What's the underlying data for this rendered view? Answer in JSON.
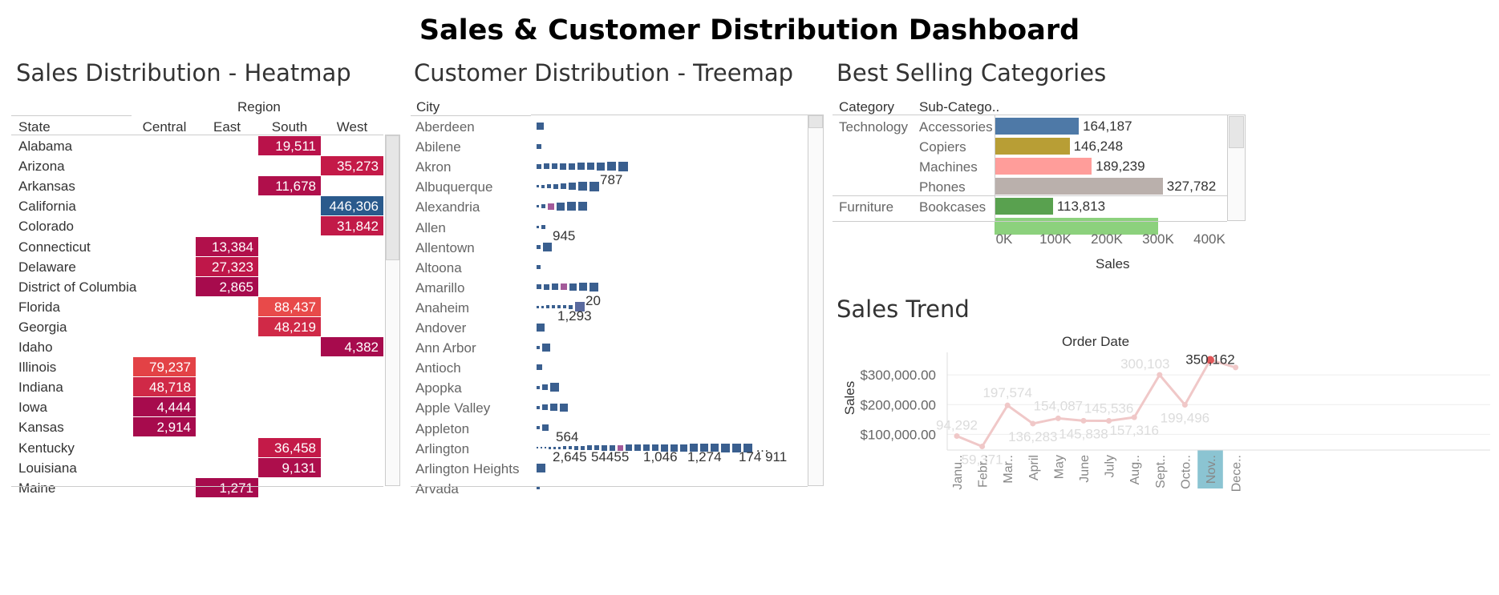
{
  "title": "Sales & Customer Distribution Dashboard",
  "heatmap": {
    "panel_title": "Sales Distribution - Heatmap",
    "column_group": "Region",
    "row_header": "State",
    "columns": [
      "Central",
      "East",
      "South",
      "West"
    ],
    "rows": [
      {
        "state": "Alabama",
        "region": "South",
        "value": 19511,
        "label": "19,511",
        "color": "#b9124a"
      },
      {
        "state": "Arizona",
        "region": "West",
        "value": 35273,
        "label": "35,273",
        "color": "#c41a48"
      },
      {
        "state": "Arkansas",
        "region": "South",
        "value": 11678,
        "label": "11,678",
        "color": "#b00f4b"
      },
      {
        "state": "California",
        "region": "West",
        "value": 446306,
        "label": "446,306",
        "color": "#2a5a8c"
      },
      {
        "state": "Colorado",
        "region": "West",
        "value": 31842,
        "label": "31,842",
        "color": "#c21a48"
      },
      {
        "state": "Connecticut",
        "region": "East",
        "value": 13384,
        "label": "13,384",
        "color": "#b1104b"
      },
      {
        "state": "Delaware",
        "region": "East",
        "value": 27323,
        "label": "27,323",
        "color": "#bf1749"
      },
      {
        "state": "District of Columbia",
        "region": "East",
        "value": 2865,
        "label": "2,865",
        "color": "#a70b4d"
      },
      {
        "state": "Florida",
        "region": "South",
        "value": 88437,
        "label": "88,437",
        "color": "#e84a4a"
      },
      {
        "state": "Georgia",
        "region": "South",
        "value": 48219,
        "label": "48,219",
        "color": "#d02947"
      },
      {
        "state": "Idaho",
        "region": "West",
        "value": 4382,
        "label": "4,382",
        "color": "#a70b4d"
      },
      {
        "state": "Illinois",
        "region": "Central",
        "value": 79237,
        "label": "79,237",
        "color": "#e34246"
      },
      {
        "state": "Indiana",
        "region": "Central",
        "value": 48718,
        "label": "48,718",
        "color": "#d02947"
      },
      {
        "state": "Iowa",
        "region": "Central",
        "value": 4444,
        "label": "4,444",
        "color": "#a70b4d"
      },
      {
        "state": "Kansas",
        "region": "Central",
        "value": 2914,
        "label": "2,914",
        "color": "#a70b4d"
      },
      {
        "state": "Kentucky",
        "region": "South",
        "value": 36458,
        "label": "36,458",
        "color": "#c41a48"
      },
      {
        "state": "Louisiana",
        "region": "South",
        "value": 9131,
        "label": "9,131",
        "color": "#ad0e4c"
      },
      {
        "state": "Maine",
        "region": "East",
        "value": 1271,
        "label": "1,271",
        "color": "#a70b4d"
      }
    ]
  },
  "treemap": {
    "panel_title": "Customer Distribution - Treemap",
    "row_header": "City",
    "colors": {
      "primary": "#3a5f8f",
      "alt": "#5a6a9f",
      "pink": "#a35a9a"
    },
    "cities": [
      {
        "name": "Aberdeen",
        "squares": [
          9
        ]
      },
      {
        "name": "Abilene",
        "squares": [
          6
        ]
      },
      {
        "name": "Akron",
        "squares": [
          6,
          7,
          7,
          8,
          8,
          9,
          9,
          10,
          11,
          12
        ],
        "labels": []
      },
      {
        "name": "Albuquerque",
        "squares": [
          3,
          4,
          5,
          6,
          7,
          9,
          11,
          12
        ],
        "labels": [
          {
            "text": "787"
          }
        ]
      },
      {
        "name": "Alexandria",
        "squares": [
          3,
          5,
          8,
          10,
          11,
          11
        ],
        "pinkIndex": 2,
        "labels": []
      },
      {
        "name": "Allen",
        "squares": [
          3,
          5
        ],
        "labels": [
          {
            "text": "945"
          }
        ]
      },
      {
        "name": "Allentown",
        "squares": [
          5,
          11
        ]
      },
      {
        "name": "Altoona",
        "squares": [
          5
        ]
      },
      {
        "name": "Amarillo",
        "squares": [
          6,
          7,
          8,
          8,
          9,
          10,
          11
        ],
        "pinkIndex": 3
      },
      {
        "name": "Anaheim",
        "squares": [
          3,
          3,
          4,
          4,
          4,
          4,
          5,
          12
        ],
        "altIndex": 7,
        "labels": [
          {
            "text": "20"
          },
          {
            "text": "1,293",
            "below": true
          }
        ]
      },
      {
        "name": "Andover",
        "squares": [
          10
        ]
      },
      {
        "name": "Ann Arbor",
        "squares": [
          4,
          10
        ]
      },
      {
        "name": "Antioch",
        "squares": [
          7
        ]
      },
      {
        "name": "Apopka",
        "squares": [
          4,
          7,
          11
        ]
      },
      {
        "name": "Apple Valley",
        "squares": [
          4,
          7,
          9,
          10
        ]
      },
      {
        "name": "Appleton",
        "squares": [
          4,
          8
        ],
        "labels": [
          {
            "text": "564"
          }
        ]
      },
      {
        "name": "Arlington",
        "squares": [
          2,
          2,
          2,
          3,
          3,
          3,
          4,
          4,
          5,
          5,
          6,
          6,
          7,
          7,
          7,
          8,
          8,
          8,
          8,
          9,
          9,
          9,
          10,
          10,
          10,
          11,
          11,
          11
        ],
        "pinkIndex": 14,
        "labels": [
          {
            "text": "2,645"
          },
          {
            "text": "54455"
          },
          {
            "text": "1,046"
          },
          {
            "text": "1,274"
          },
          {
            "text": "174 911"
          }
        ],
        "more": "…"
      },
      {
        "name": "Arlington Heights",
        "squares": [
          11
        ]
      },
      {
        "name": "Arvada",
        "squares": [
          4
        ]
      }
    ]
  },
  "categories": {
    "panel_title": "Best Selling Categories",
    "col_category": "Category",
    "col_subcategory": "Sub-Catego..",
    "xlabel": "Sales",
    "ticks": [
      "0K",
      "100K",
      "200K",
      "300K",
      "400K"
    ],
    "max": 400000,
    "rows": [
      {
        "category": "Technology",
        "sub": "Accessories",
        "value": 164187,
        "label": "164,187",
        "color": "#4e79a7"
      },
      {
        "category": "",
        "sub": "Copiers",
        "value": 146248,
        "label": "146,248",
        "color": "#b89e35"
      },
      {
        "category": "",
        "sub": "Machines",
        "value": 189239,
        "label": "189,239",
        "color": "#ff9d9a"
      },
      {
        "category": "",
        "sub": "Phones",
        "value": 327782,
        "label": "327,782",
        "color": "#bab0ac"
      },
      {
        "category": "Furniture",
        "sub": "Bookcases",
        "value": 113813,
        "label": "113,813",
        "color": "#59a14f"
      },
      {
        "category": "",
        "sub": "",
        "value": 319479,
        "label": "",
        "color": "#8cd17d"
      }
    ]
  },
  "trend": {
    "panel_title": "Sales Trend",
    "xlabel": "Order Date",
    "ylabel": "Sales",
    "yticks": [
      "$100,000.00",
      "$200,000.00",
      "$300,000.00"
    ],
    "months": [
      "Janu..",
      "Febr..",
      "Mar..",
      "April",
      "May",
      "June",
      "July",
      "Aug..",
      "Sept..",
      "Octo..",
      "Nov..",
      "Dece.."
    ],
    "highlight_index": 10,
    "values": [
      94292,
      59371,
      197574,
      136283,
      154087,
      145838,
      145536,
      157316,
      300103,
      199496,
      350162,
      325000
    ],
    "labels": [
      "94,292",
      "59,371",
      "197,574",
      "136,283",
      "154,087",
      "145,838",
      "145,536",
      "157,316",
      "300,103",
      "199,496",
      "350,162",
      ""
    ],
    "line_color": "#f0c8c8",
    "highlight_color": "#e15759",
    "highlight_bg": "#8bc4d2"
  }
}
